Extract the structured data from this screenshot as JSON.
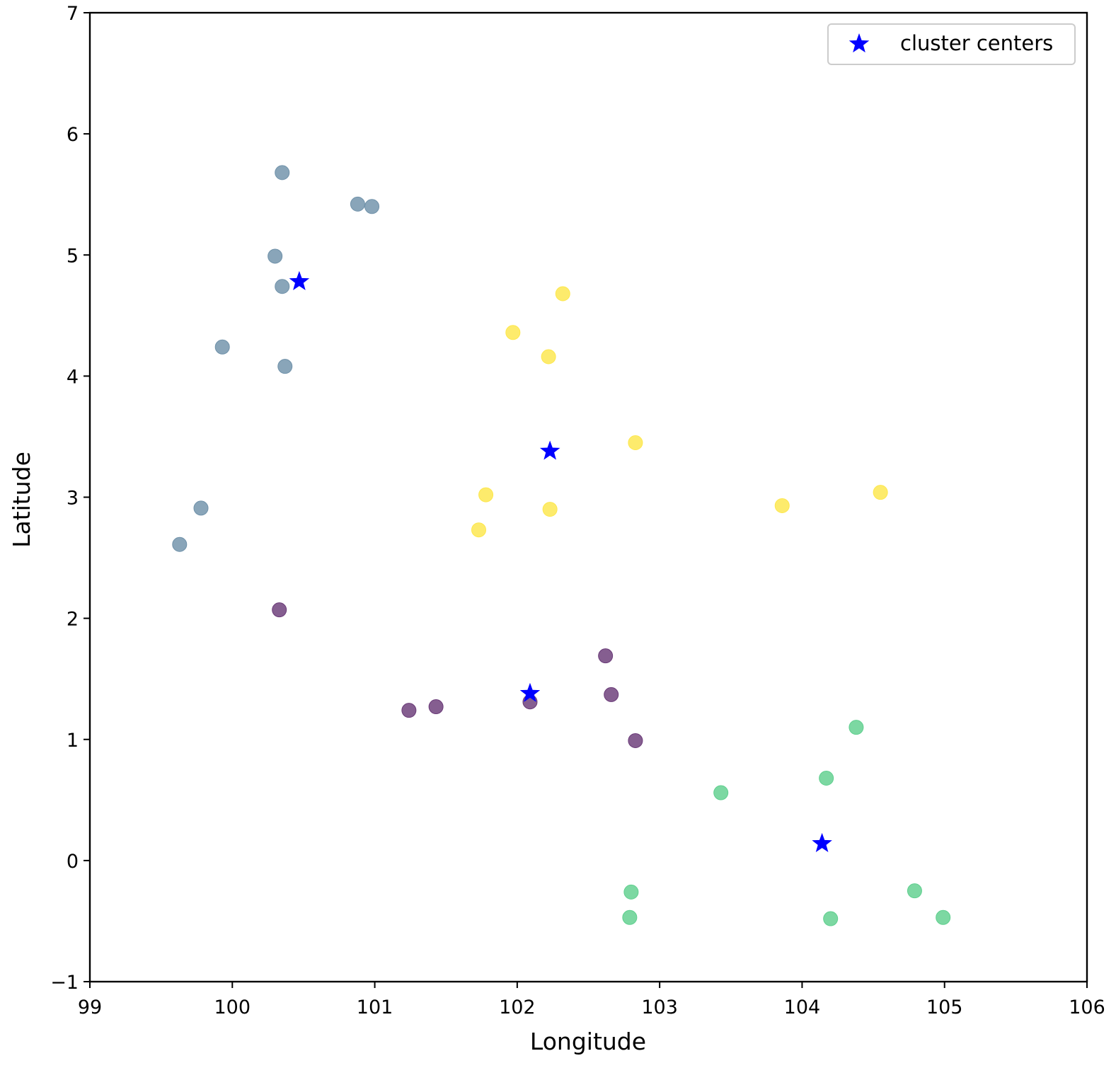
{
  "chart_data": {
    "type": "scatter",
    "title": "",
    "xlabel": "Longitude",
    "ylabel": "Latitude",
    "xlim": [
      99,
      106
    ],
    "ylim": [
      -1,
      7
    ],
    "x_ticks": [
      "99",
      "100",
      "101",
      "102",
      "103",
      "104",
      "105",
      "106"
    ],
    "y_ticks": [
      "−1",
      "0",
      "1",
      "2",
      "3",
      "4",
      "5",
      "6",
      "7"
    ],
    "grid": false,
    "legend": {
      "placement": "upper right",
      "entries": [
        {
          "label": "cluster centers",
          "marker": "star",
          "color": "#0000ff"
        }
      ]
    },
    "series": [
      {
        "color": "#6f91a9",
        "points": [
          [
            100.35,
            5.68
          ],
          [
            100.88,
            5.42
          ],
          [
            100.98,
            5.4
          ],
          [
            100.3,
            4.99
          ],
          [
            100.35,
            4.74
          ],
          [
            99.93,
            4.24
          ],
          [
            100.37,
            4.08
          ],
          [
            99.78,
            2.91
          ],
          [
            99.63,
            2.61
          ]
        ]
      },
      {
        "color": "#fde74c",
        "points": [
          [
            102.32,
            4.68
          ],
          [
            101.97,
            4.36
          ],
          [
            102.22,
            4.16
          ],
          [
            102.83,
            3.45
          ],
          [
            101.78,
            3.02
          ],
          [
            102.23,
            2.9
          ],
          [
            101.73,
            2.73
          ],
          [
            103.86,
            2.93
          ],
          [
            104.55,
            3.04
          ]
        ]
      },
      {
        "color": "#6a3a78",
        "points": [
          [
            100.33,
            2.07
          ],
          [
            102.62,
            1.69
          ],
          [
            102.66,
            1.37
          ],
          [
            101.43,
            1.27
          ],
          [
            101.24,
            1.24
          ],
          [
            102.09,
            1.31
          ],
          [
            102.83,
            0.99
          ]
        ]
      },
      {
        "color": "#5fcf8e",
        "points": [
          [
            104.38,
            1.1
          ],
          [
            104.17,
            0.68
          ],
          [
            103.43,
            0.56
          ],
          [
            102.8,
            -0.26
          ],
          [
            102.79,
            -0.47
          ],
          [
            104.2,
            -0.48
          ],
          [
            104.79,
            -0.25
          ],
          [
            104.99,
            -0.47
          ]
        ]
      }
    ],
    "centers": {
      "label": "cluster centers",
      "color": "#0000ff",
      "points": [
        [
          100.47,
          4.78
        ],
        [
          102.23,
          3.38
        ],
        [
          102.09,
          1.38
        ],
        [
          104.14,
          0.14
        ]
      ]
    }
  }
}
